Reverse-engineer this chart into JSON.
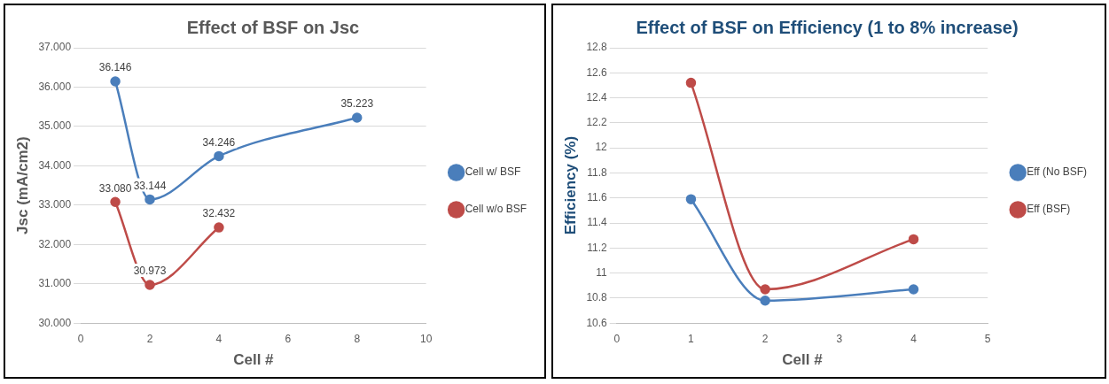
{
  "chart_data": [
    {
      "type": "line",
      "title": "Effect of BSF on Jsc",
      "xlabel": "Cell #",
      "ylabel": "Jsc (mA/cm2)",
      "xlim": [
        0,
        10
      ],
      "xticks": [
        0,
        2,
        4,
        6,
        8,
        10
      ],
      "ylim": [
        30,
        37
      ],
      "yticks": [
        {
          "value": 30,
          "label": "30.000"
        },
        {
          "value": 31,
          "label": "31.000"
        },
        {
          "value": 32,
          "label": "32.000"
        },
        {
          "value": 33,
          "label": "33.000"
        },
        {
          "value": 34,
          "label": "34.000"
        },
        {
          "value": 35,
          "label": "35.000"
        },
        {
          "value": 36,
          "label": "36.000"
        },
        {
          "value": 37,
          "label": "37.000"
        }
      ],
      "grid": "y",
      "legend": "right",
      "marker": "circle",
      "line_style": "solid",
      "series": [
        {
          "name": "Cell w/ BSF",
          "color": "#4a7ebb",
          "x": [
            1,
            2,
            4,
            8
          ],
          "values": [
            36.146,
            33.144,
            34.246,
            35.223
          ],
          "value_labels": [
            "36.146",
            "33.144",
            "34.246",
            "35.223"
          ]
        },
        {
          "name": "Cell w/o BSF",
          "color": "#be4b48",
          "x": [
            1,
            2,
            4
          ],
          "values": [
            33.08,
            30.973,
            32.432
          ],
          "value_labels": [
            "33.080",
            "30.973",
            "32.432"
          ]
        }
      ]
    },
    {
      "type": "line",
      "title": "Effect of BSF on Efficiency (1 to 8% increase)",
      "xlabel": "Cell #",
      "ylabel": "Efficiency (%)",
      "xlim": [
        0,
        5
      ],
      "xticks": [
        0,
        1,
        2,
        3,
        4,
        5
      ],
      "ylim": [
        10.6,
        12.8
      ],
      "yticks": [
        10.6,
        10.8,
        11,
        11.2,
        11.4,
        11.6,
        11.8,
        12,
        12.2,
        12.4,
        12.6,
        12.8
      ],
      "grid": "y",
      "legend": "right",
      "marker": "circle",
      "line_style": "solid",
      "series": [
        {
          "name": "Eff (No BSF)",
          "color": "#4a7ebb",
          "x": [
            1,
            2,
            4
          ],
          "values": [
            11.59,
            10.78,
            10.87
          ]
        },
        {
          "name": "Eff (BSF)",
          "color": "#be4b48",
          "x": [
            1,
            2,
            4
          ],
          "values": [
            12.52,
            10.87,
            11.27
          ]
        }
      ]
    }
  ]
}
